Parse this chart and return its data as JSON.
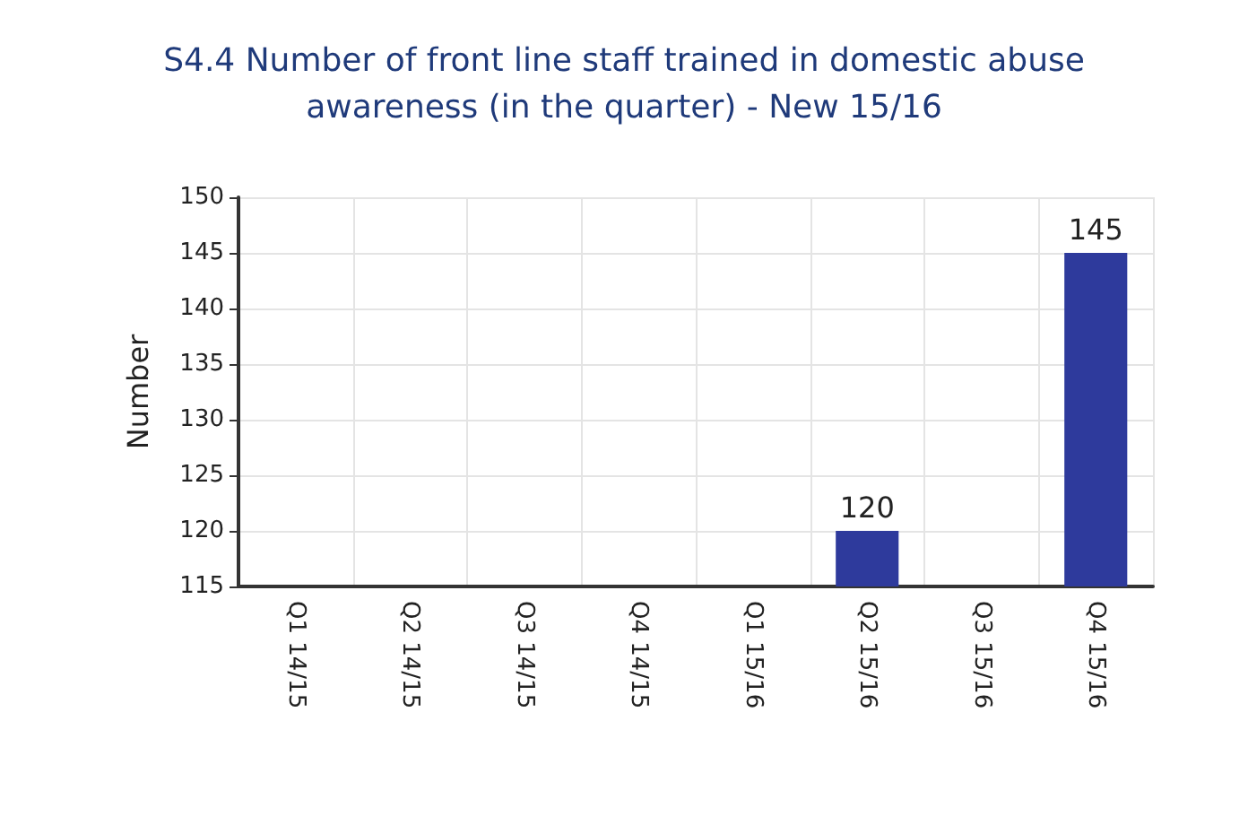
{
  "chart_data": {
    "type": "bar",
    "title": "S4.4 Number of front line staff trained in domestic abuse\nawareness (in the quarter) - New 15/16",
    "ylabel": "Number",
    "categories": [
      "Q1 14/15",
      "Q2 14/15",
      "Q3 14/15",
      "Q4 14/15",
      "Q1 15/16",
      "Q2 15/16",
      "Q3 15/16",
      "Q4 15/16"
    ],
    "values": [
      null,
      null,
      null,
      null,
      null,
      120,
      null,
      145
    ],
    "color": "#2e3a9c",
    "ylim": [
      115,
      150
    ],
    "yticks": [
      115,
      120,
      125,
      130,
      135,
      140,
      145,
      150
    ],
    "grid": true,
    "data_labels": true
  }
}
